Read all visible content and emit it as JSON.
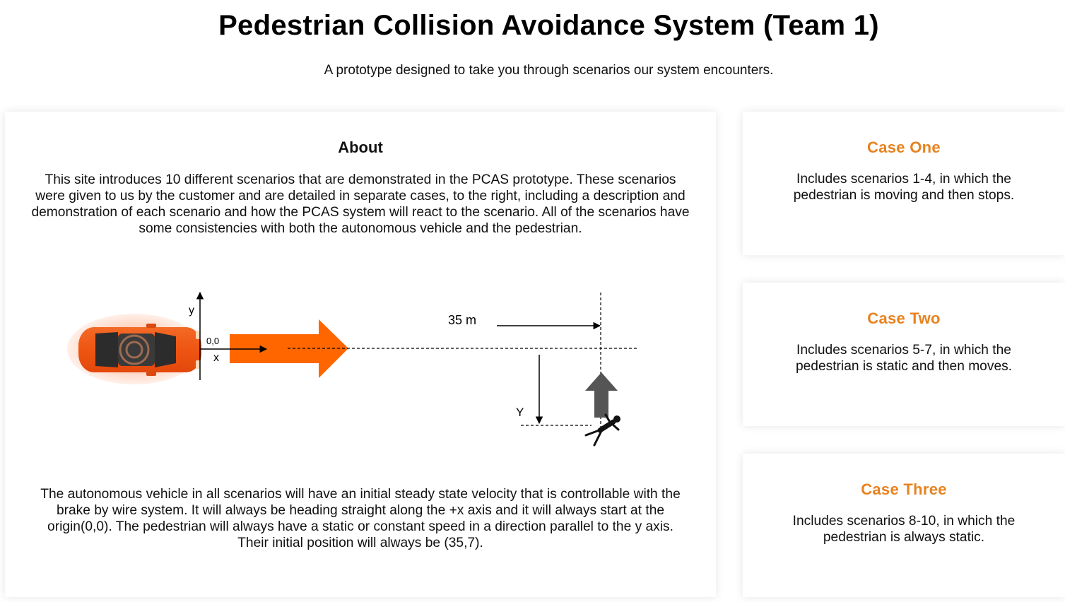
{
  "header": {
    "title": "Pedestrian Collision Avoidance System (Team 1)",
    "subtitle": "A prototype designed to take you through scenarios our system encounters."
  },
  "about": {
    "title": "About",
    "paragraph_1": "This site introduces 10 different scenarios that are demonstrated in the PCAS prototype. These scenarios were given to us by the customer and are detailed in separate cases, to the right, including a description and demonstration of each scenario and how the PCAS system will react to the scenario. All of the scenarios have some consistencies with both the autonomous vehicle and the pedestrian.",
    "paragraph_2": "The autonomous vehicle in all scenarios will have an initial steady state velocity that is controllable with the brake by wire system. It will always be heading straight along the +x axis and it will always start at the origin(0,0). The pedestrian will always have a static or constant speed in a direction parallel to the y axis. Their initial position will always be (35,7).",
    "diagram": {
      "y_axis_label": "y",
      "x_axis_label": "x",
      "origin_label": "0,0",
      "distance_label": "35 m",
      "offset_label": "Y"
    }
  },
  "cases": [
    {
      "title": "Case One",
      "description": "Includes scenarios 1-4, in which the pedestrian is moving and then stops."
    },
    {
      "title": "Case Two",
      "description": "Includes scenarios 5-7, in which the pedestrian is static and then moves."
    },
    {
      "title": "Case Three",
      "description": "Includes scenarios 8-10, in which the pedestrian is always static."
    }
  ],
  "colors": {
    "accent": "#e8821e",
    "vehicle_arrow": "#ff6600",
    "car_body": "#f05a14",
    "pedestrian_arrow": "#555555"
  }
}
